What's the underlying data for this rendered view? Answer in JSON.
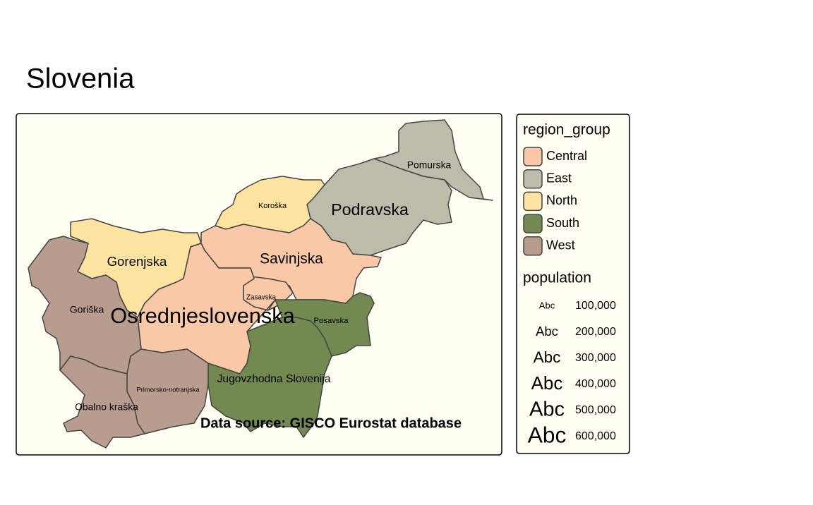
{
  "title": "Slovenia",
  "source": "Data source: GISCO Eurostat database",
  "regions": [
    {
      "name": "Pomurska",
      "group": "East",
      "population": 114000
    },
    {
      "name": "Podravska",
      "group": "East",
      "population": 320000
    },
    {
      "name": "Koroška",
      "group": "North",
      "population": 71000
    },
    {
      "name": "Gorenjska",
      "group": "North",
      "population": 205000
    },
    {
      "name": "Savinjska",
      "group": "Central",
      "population": 260000
    },
    {
      "name": "Zasavska",
      "group": "Central",
      "population": 57000
    },
    {
      "name": "Osrednjeslovenska",
      "group": "Central",
      "population": 560000
    },
    {
      "name": "Posavska",
      "group": "South",
      "population": 76000
    },
    {
      "name": "Jugovzhodna Slovenija",
      "group": "South",
      "population": 145000
    },
    {
      "name": "Goriška",
      "group": "West",
      "population": 118000
    },
    {
      "name": "Primorsko-notranjska",
      "group": "West",
      "population": 53000
    },
    {
      "name": "Obalno kraška",
      "group": "West",
      "population": 115000
    }
  ],
  "legend": {
    "region_group": {
      "title": "region_group",
      "items": [
        {
          "label": "Central",
          "color": "#f9c8a6"
        },
        {
          "label": "East",
          "color": "#bdbcab"
        },
        {
          "label": "North",
          "color": "#fde3a0"
        },
        {
          "label": "South",
          "color": "#728a52"
        },
        {
          "label": "West",
          "color": "#b89c8e"
        }
      ]
    },
    "population": {
      "title": "population",
      "symbol": "Abc",
      "items": [
        {
          "value": 100000,
          "label": "100,000"
        },
        {
          "value": 200000,
          "label": "200,000"
        },
        {
          "value": 300000,
          "label": "300,000"
        },
        {
          "value": 400000,
          "label": "400,000"
        },
        {
          "value": 500000,
          "label": "500,000"
        },
        {
          "value": 600000,
          "label": "600,000"
        }
      ]
    }
  }
}
